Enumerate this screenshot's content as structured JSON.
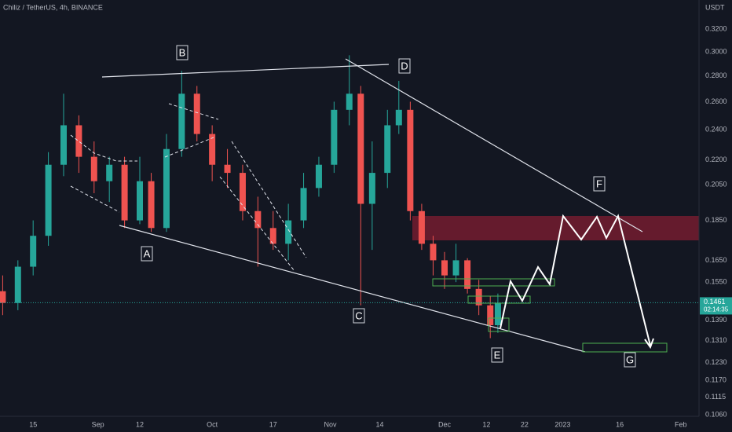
{
  "header": "Chiliz / TetherUS, 4h, BINANCE",
  "chart_data": {
    "type": "candlestick",
    "y_unit": "USDT",
    "log_scale": true,
    "up_color": "#26a69a",
    "down_color": "#ef5350",
    "x": [
      219,
      223,
      227,
      231,
      235,
      239,
      243,
      247,
      251,
      255,
      258,
      262,
      266,
      270,
      274,
      278,
      282,
      286,
      290,
      294,
      298,
      302,
      306,
      310,
      313,
      316,
      320,
      323,
      326,
      329,
      332,
      335,
      338,
      341,
      344,
      347,
      349
    ],
    "open": [
      0.151,
      0.146,
      0.162,
      0.177,
      0.217,
      0.243,
      0.222,
      0.207,
      0.217,
      0.185,
      0.207,
      0.181,
      0.227,
      0.266,
      0.237,
      0.217,
      0.212,
      0.19,
      0.181,
      0.173,
      0.185,
      0.203,
      0.217,
      0.254,
      0.266,
      0.194,
      0.212,
      0.243,
      0.254,
      0.19,
      0.173,
      0.165,
      0.158,
      0.165,
      0.152,
      0.145,
      0.137
    ],
    "high": [
      0.158,
      0.165,
      0.185,
      0.225,
      0.266,
      0.25,
      0.232,
      0.222,
      0.222,
      0.222,
      0.212,
      0.237,
      0.284,
      0.272,
      0.243,
      0.227,
      0.217,
      0.198,
      0.19,
      0.194,
      0.212,
      0.222,
      0.26,
      0.297,
      0.272,
      0.232,
      0.254,
      0.276,
      0.26,
      0.194,
      0.177,
      0.169,
      0.173,
      0.166,
      0.156,
      0.149,
      0.15
    ],
    "low": [
      0.141,
      0.143,
      0.158,
      0.172,
      0.21,
      0.212,
      0.2,
      0.195,
      0.181,
      0.183,
      0.179,
      0.179,
      0.222,
      0.232,
      0.207,
      0.203,
      0.185,
      0.162,
      0.17,
      0.165,
      0.181,
      0.198,
      0.212,
      0.243,
      0.145,
      0.17,
      0.203,
      0.237,
      0.185,
      0.17,
      0.158,
      0.152,
      0.155,
      0.15,
      0.141,
      0.132,
      0.134
    ],
    "close": [
      0.146,
      0.162,
      0.177,
      0.217,
      0.243,
      0.222,
      0.207,
      0.217,
      0.185,
      0.207,
      0.181,
      0.227,
      0.266,
      0.237,
      0.217,
      0.212,
      0.19,
      0.181,
      0.173,
      0.185,
      0.203,
      0.217,
      0.254,
      0.266,
      0.194,
      0.212,
      0.243,
      0.254,
      0.19,
      0.173,
      0.165,
      0.158,
      0.165,
      0.152,
      0.145,
      0.137,
      0.1461
    ],
    "xlim": [
      218.3,
      401.8
    ],
    "xticks": [
      {
        "value": 227,
        "label": "15"
      },
      {
        "value": 244,
        "label": "Sep"
      },
      {
        "value": 255,
        "label": "12"
      },
      {
        "value": 274,
        "label": "Oct"
      },
      {
        "value": 290,
        "label": "17"
      },
      {
        "value": 305,
        "label": "Nov"
      },
      {
        "value": 318,
        "label": "14"
      },
      {
        "value": 335,
        "label": "Dec"
      },
      {
        "value": 346,
        "label": "12"
      },
      {
        "value": 356,
        "label": "22"
      },
      {
        "value": 366,
        "label": "2023"
      },
      {
        "value": 381,
        "label": "16"
      },
      {
        "value": 397,
        "label": "Feb"
      }
    ],
    "ylim": [
      0.1055,
      0.348
    ],
    "yticks": [
      {
        "value": 0.32,
        "label": "0.3200"
      },
      {
        "value": 0.3,
        "label": "0.3000"
      },
      {
        "value": 0.28,
        "label": "0.2800"
      },
      {
        "value": 0.26,
        "label": "0.2600"
      },
      {
        "value": 0.24,
        "label": "0.2400"
      },
      {
        "value": 0.22,
        "label": "0.2200"
      },
      {
        "value": 0.205,
        "label": "0.2050"
      },
      {
        "value": 0.185,
        "label": "0.1850"
      },
      {
        "value": 0.165,
        "label": "0.1650"
      },
      {
        "value": 0.155,
        "label": "0.1550"
      },
      {
        "value": 0.139,
        "label": "0.1390"
      },
      {
        "value": 0.131,
        "label": "0.1310"
      },
      {
        "value": 0.123,
        "label": "0.1230"
      },
      {
        "value": 0.117,
        "label": "0.1170"
      },
      {
        "value": 0.1115,
        "label": "0.1115"
      },
      {
        "value": 0.106,
        "label": "0.1060"
      }
    ],
    "last_price": {
      "value": 0.1461,
      "label": "0.1461"
    },
    "countdown": "02:14:35",
    "annotations": [
      "A",
      "B",
      "C",
      "D",
      "E",
      "F",
      "G"
    ]
  }
}
